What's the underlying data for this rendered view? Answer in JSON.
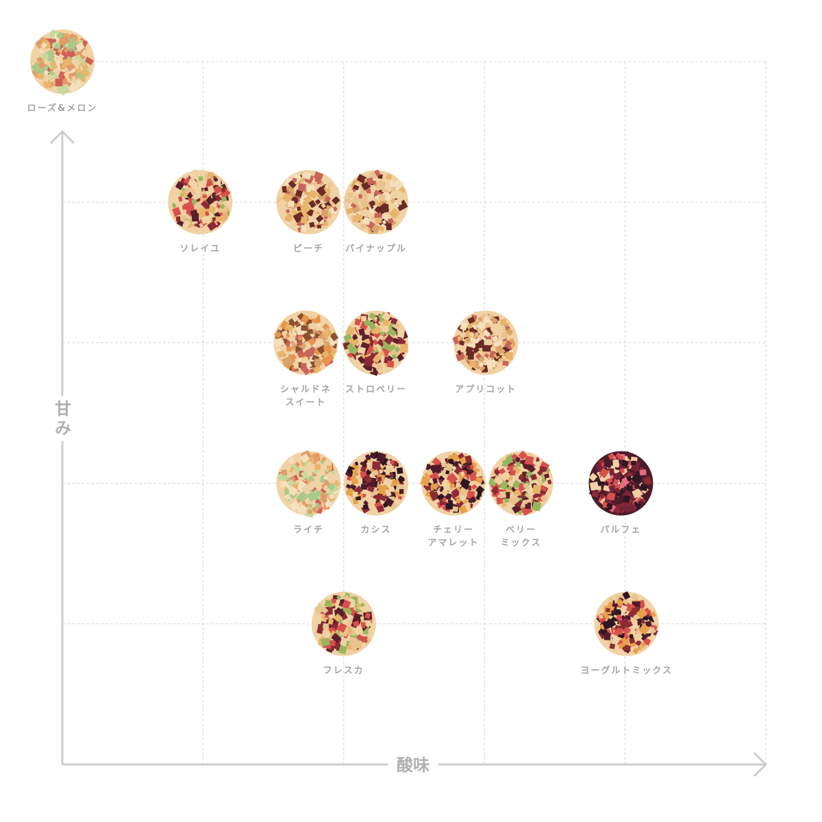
{
  "chart_data": {
    "type": "scatter",
    "xlabel": "酸味",
    "ylabel": "甘み",
    "xlim": [
      0,
      5
    ],
    "ylim": [
      0,
      5
    ],
    "grid": true,
    "grid_style": "dashed",
    "axis_color": "#cccccc",
    "points": [
      {
        "name": "ローズ&メロン",
        "lines": [
          "ローズ&メロン"
        ],
        "x": 0.0,
        "y": 5.0,
        "tone": "light-green"
      },
      {
        "name": "ソレイユ",
        "lines": [
          "ソレイユ"
        ],
        "x": 0.98,
        "y": 4.0,
        "tone": "mixed"
      },
      {
        "name": "ピーチ",
        "lines": [
          "ピーチ"
        ],
        "x": 1.75,
        "y": 4.0,
        "tone": "light"
      },
      {
        "name": "パイナップル",
        "lines": [
          "パイナップル"
        ],
        "x": 2.23,
        "y": 4.0,
        "tone": "light"
      },
      {
        "name": "シャルドネスイート",
        "lines": [
          "シャルドネ",
          "スイート"
        ],
        "x": 1.73,
        "y": 3.0,
        "tone": "orange"
      },
      {
        "name": "ストロベリー",
        "lines": [
          "ストロベリー"
        ],
        "x": 2.23,
        "y": 3.0,
        "tone": "mixed"
      },
      {
        "name": "アプリコット",
        "lines": [
          "アプリコット"
        ],
        "x": 3.01,
        "y": 3.0,
        "tone": "light"
      },
      {
        "name": "ライチ",
        "lines": [
          "ライチ"
        ],
        "x": 1.75,
        "y": 2.0,
        "tone": "light-green"
      },
      {
        "name": "カシス",
        "lines": [
          "カシス"
        ],
        "x": 2.23,
        "y": 2.0,
        "tone": "dark"
      },
      {
        "name": "チェリーアマレット",
        "lines": [
          "チェリー",
          "アマレット"
        ],
        "x": 2.78,
        "y": 2.0,
        "tone": "dark"
      },
      {
        "name": "ベリーミックス",
        "lines": [
          "ベリー",
          "ミックス"
        ],
        "x": 3.26,
        "y": 2.0,
        "tone": "mixed"
      },
      {
        "name": "パルフェ",
        "lines": [
          "パルフェ"
        ],
        "x": 3.97,
        "y": 2.0,
        "tone": "darkest"
      },
      {
        "name": "フレスカ",
        "lines": [
          "フレスカ"
        ],
        "x": 2.0,
        "y": 1.0,
        "tone": "mixed"
      },
      {
        "name": "ヨーグルトミックス",
        "lines": [
          "ヨーグルトミックス"
        ],
        "x": 4.01,
        "y": 1.0,
        "tone": "dark"
      }
    ]
  }
}
